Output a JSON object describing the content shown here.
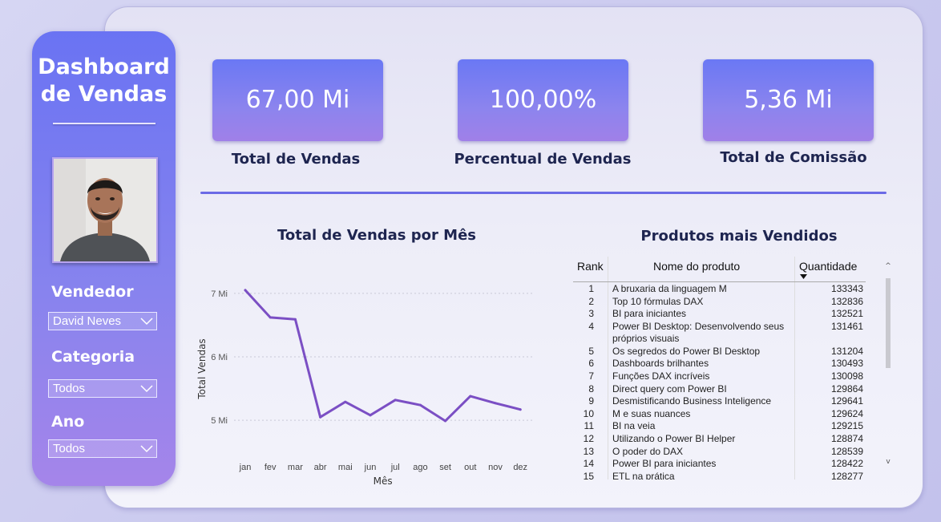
{
  "sidebar": {
    "title_line1": "Dashboard",
    "title_line2": "de Vendas",
    "filters": [
      {
        "label": "Vendedor",
        "value": "David Neves"
      },
      {
        "label": "Categoria",
        "value": "Todos"
      },
      {
        "label": "Ano",
        "value": "Todos"
      }
    ]
  },
  "kpis": [
    {
      "value": "67,00 Mi",
      "label": "Total de Vendas"
    },
    {
      "value": "100,00%",
      "label": "Percentual de Vendas"
    },
    {
      "value": "5,36 Mi",
      "label": "Total de Comissão"
    }
  ],
  "line_chart_title": "Total de Vendas por Mês",
  "table": {
    "title": "Produtos mais Vendidos",
    "headers": {
      "rank": "Rank",
      "name": "Nome do produto",
      "qty": "Quantidade"
    },
    "rows": [
      {
        "rank": "1",
        "name": "A bruxaria da linguagem M",
        "qty": "133343"
      },
      {
        "rank": "2",
        "name": "Top 10 fórmulas DAX",
        "qty": "132836"
      },
      {
        "rank": "3",
        "name": "BI para iniciantes",
        "qty": "132521"
      },
      {
        "rank": "4",
        "name": "Power BI Desktop: Desenvolvendo seus",
        "name2": "próprios visuais",
        "qty": "131461"
      },
      {
        "rank": "5",
        "name": "Os segredos do Power BI Desktop",
        "qty": "131204"
      },
      {
        "rank": "6",
        "name": "Dashboards brilhantes",
        "qty": "130493"
      },
      {
        "rank": "7",
        "name": "Funções DAX incríveis",
        "qty": "130098"
      },
      {
        "rank": "8",
        "name": "Direct query com Power BI",
        "qty": "129864"
      },
      {
        "rank": "9",
        "name": "Desmistificando Business Inteligence",
        "qty": "129641"
      },
      {
        "rank": "10",
        "name": "M e suas nuances",
        "qty": "129624"
      },
      {
        "rank": "11",
        "name": "BI na veia",
        "qty": "129215"
      },
      {
        "rank": "12",
        "name": "Utilizando o Power BI Helper",
        "qty": "128874"
      },
      {
        "rank": "13",
        "name": "O poder do DAX",
        "qty": "128539"
      },
      {
        "rank": "14",
        "name": "Power BI para iniciantes",
        "qty": "128422"
      },
      {
        "rank": "15",
        "name": "ETL na prática",
        "qty": "128277"
      }
    ]
  },
  "colors": {
    "accent": "#6b6ae6",
    "line": "#7b4fc4",
    "text_dark": "#1e2550"
  },
  "chart_data": {
    "type": "line",
    "xlabel": "Mês",
    "ylabel": "Total Vendas",
    "categories": [
      "jan",
      "fev",
      "mar",
      "abr",
      "mai",
      "jun",
      "jul",
      "ago",
      "set",
      "out",
      "nov",
      "dez"
    ],
    "values": [
      7.05,
      6.62,
      6.59,
      5.05,
      5.29,
      5.08,
      5.32,
      5.24,
      4.99,
      5.38,
      5.27,
      5.17
    ],
    "ylim": [
      4.8,
      7.2
    ],
    "yticks": [
      5,
      6,
      7
    ],
    "ytick_labels": [
      "5 Mi",
      "6 Mi",
      "7 Mi"
    ],
    "grid": true
  }
}
